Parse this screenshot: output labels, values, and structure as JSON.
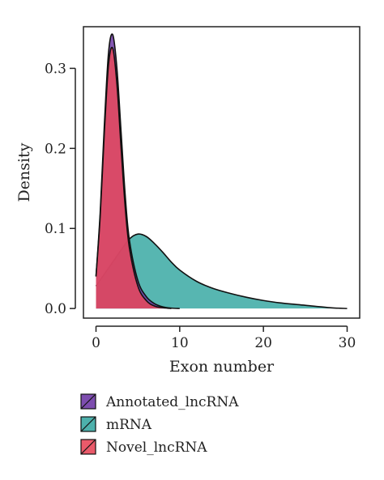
{
  "chart_data": {
    "type": "area",
    "xlabel": "Exon number",
    "ylabel": "Density",
    "xlim": [
      -1.5,
      31.5
    ],
    "ylim": [
      -0.012,
      0.352
    ],
    "xticks": [
      0,
      10,
      20,
      30
    ],
    "yticks": [
      0.0,
      0.1,
      0.2,
      0.3
    ],
    "xtick_labels": [
      "0",
      "10",
      "20",
      "30"
    ],
    "ytick_labels": [
      "0.0",
      "0.1",
      "0.2",
      "0.3"
    ],
    "grid": false,
    "legend_position": "bottom-left",
    "series": [
      {
        "name": "mRNA",
        "color": "#3aa9a3",
        "x": [
          0,
          1,
          2,
          3,
          4,
          5,
          6,
          7,
          8,
          9,
          10,
          12,
          14,
          16,
          18,
          20,
          22,
          25,
          28,
          30
        ],
        "y": [
          0.028,
          0.043,
          0.058,
          0.073,
          0.087,
          0.093,
          0.09,
          0.081,
          0.07,
          0.058,
          0.048,
          0.034,
          0.025,
          0.019,
          0.014,
          0.01,
          0.007,
          0.004,
          0.001,
          0.0
        ]
      },
      {
        "name": "Annotated_lncRNA",
        "color": "#6f3aa6",
        "x": [
          0,
          0.5,
          1,
          1.5,
          2,
          2.5,
          3,
          3.5,
          4,
          5,
          6,
          7,
          8,
          9,
          10
        ],
        "y": [
          0.04,
          0.12,
          0.23,
          0.32,
          0.342,
          0.3,
          0.22,
          0.14,
          0.085,
          0.035,
          0.015,
          0.006,
          0.002,
          0.0005,
          0.0
        ]
      },
      {
        "name": "Novel_lncRNA",
        "color": "#e8485a",
        "x": [
          0,
          0.5,
          1,
          1.5,
          2,
          2.5,
          3,
          3.5,
          4,
          5,
          6,
          7,
          8,
          9
        ],
        "y": [
          0.04,
          0.115,
          0.22,
          0.305,
          0.325,
          0.28,
          0.2,
          0.125,
          0.075,
          0.028,
          0.01,
          0.003,
          0.001,
          0.0
        ]
      }
    ],
    "legend_order": [
      "Annotated_lncRNA",
      "mRNA",
      "Novel_lncRNA"
    ]
  }
}
